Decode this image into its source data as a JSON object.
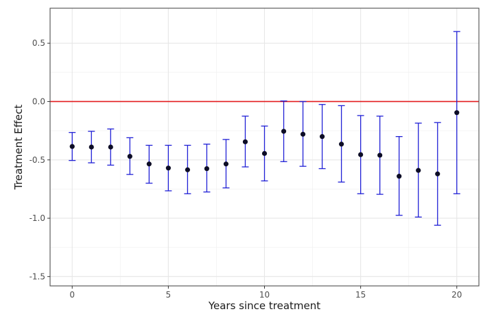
{
  "chart_data": {
    "type": "scatter",
    "title": "",
    "xlabel": "Years since treatment",
    "ylabel": "Treatment Effect",
    "xlim": [
      -1.15,
      21.15
    ],
    "ylim": [
      -1.58,
      0.8
    ],
    "x_ticks": [
      0,
      5,
      10,
      15,
      20
    ],
    "x_tick_labels": [
      "0",
      "5",
      "10",
      "15",
      "20"
    ],
    "y_ticks": [
      -1.5,
      -1.0,
      -0.5,
      0.0,
      0.5
    ],
    "y_tick_labels": [
      "-1.5",
      "-1.0",
      "-0.5",
      "0.0",
      "0.5"
    ],
    "grid": true,
    "reference_line": {
      "y": 0.0,
      "color": "#e31a1c"
    },
    "colors": {
      "point": "#0d0d26",
      "errorbar": "#1f1fd6",
      "panel_border": "#4d4d4d",
      "grid_major": "#e6e6e6",
      "grid_minor": "#f2f2f2"
    },
    "series": [
      {
        "points": [
          {
            "x": 0,
            "y": -0.385,
            "ymin": -0.505,
            "ymax": -0.265
          },
          {
            "x": 1,
            "y": -0.39,
            "ymin": -0.525,
            "ymax": -0.255
          },
          {
            "x": 2,
            "y": -0.39,
            "ymin": -0.545,
            "ymax": -0.235
          },
          {
            "x": 3,
            "y": -0.47,
            "ymin": -0.625,
            "ymax": -0.31
          },
          {
            "x": 4,
            "y": -0.535,
            "ymin": -0.7,
            "ymax": -0.375
          },
          {
            "x": 5,
            "y": -0.57,
            "ymin": -0.765,
            "ymax": -0.375
          },
          {
            "x": 6,
            "y": -0.585,
            "ymin": -0.79,
            "ymax": -0.375
          },
          {
            "x": 7,
            "y": -0.575,
            "ymin": -0.775,
            "ymax": -0.365
          },
          {
            "x": 8,
            "y": -0.535,
            "ymin": -0.74,
            "ymax": -0.325
          },
          {
            "x": 9,
            "y": -0.345,
            "ymin": -0.56,
            "ymax": -0.125
          },
          {
            "x": 10,
            "y": -0.445,
            "ymin": -0.68,
            "ymax": -0.21
          },
          {
            "x": 11,
            "y": -0.255,
            "ymin": -0.515,
            "ymax": 0.005
          },
          {
            "x": 12,
            "y": -0.28,
            "ymin": -0.555,
            "ymax": 0.0
          },
          {
            "x": 13,
            "y": -0.3,
            "ymin": -0.575,
            "ymax": -0.025
          },
          {
            "x": 14,
            "y": -0.365,
            "ymin": -0.69,
            "ymax": -0.035
          },
          {
            "x": 15,
            "y": -0.455,
            "ymin": -0.79,
            "ymax": -0.12
          },
          {
            "x": 16,
            "y": -0.46,
            "ymin": -0.795,
            "ymax": -0.125
          },
          {
            "x": 17,
            "y": -0.64,
            "ymin": -0.975,
            "ymax": -0.3
          },
          {
            "x": 18,
            "y": -0.59,
            "ymin": -0.99,
            "ymax": -0.185
          },
          {
            "x": 19,
            "y": -0.62,
            "ymin": -1.06,
            "ymax": -0.18
          },
          {
            "x": 20,
            "y": -0.095,
            "ymin": -0.79,
            "ymax": 0.6
          }
        ]
      }
    ]
  }
}
